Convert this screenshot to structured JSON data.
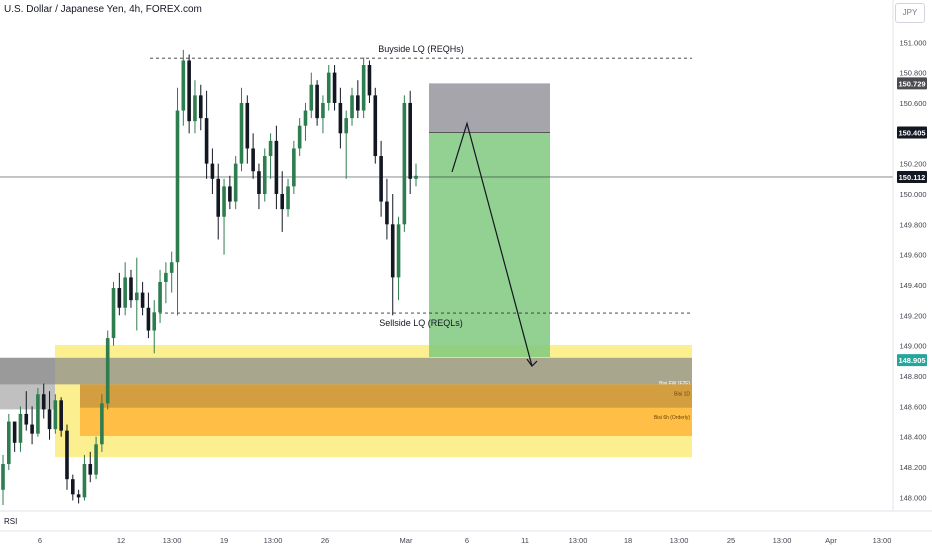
{
  "header": {
    "title": "U.S. Dollar / Japanese Yen, 4h, FOREX.com",
    "currency": "JPY"
  },
  "indicator": {
    "label": "RSI"
  },
  "colors": {
    "bull": "#26a69a",
    "bear": "#131722",
    "bull_fill": "#2e7d4f",
    "target_zone": "#7fc97f",
    "stop_zone": "#9b9ba2",
    "yellow_zone": "#fbe96a",
    "orange_zone": "#ffb53a",
    "gray_zone": "#8d8d8d",
    "last_price_bg": "#131722",
    "green_tag_bg": "#26a69a",
    "gray_tag_bg": "#4a4a4f"
  },
  "chart_data": {
    "type": "candlestick",
    "symbol": "USDJPY",
    "interval": "4h",
    "y_axis": {
      "ticks": [
        "151.000",
        "150.800",
        "150.600",
        "150.200",
        "150.000",
        "149.800",
        "149.600",
        "149.400",
        "149.200",
        "149.000",
        "148.800",
        "148.600",
        "148.400",
        "148.200",
        "148.000"
      ],
      "range": [
        147.93,
        151.16
      ]
    },
    "x_axis": {
      "ticks": [
        "6",
        "12",
        "13:00",
        "19",
        "13:00",
        "26",
        "Mar",
        "6",
        "11",
        "13:00",
        "18",
        "13:00",
        "25",
        "13:00",
        "Apr",
        "13:00"
      ]
    },
    "price_tags": [
      {
        "value": "150.729",
        "price": 150.729,
        "style": "gray"
      },
      {
        "value": "150.405",
        "price": 150.405,
        "style": "dark"
      },
      {
        "value": "150.112",
        "price": 150.112,
        "style": "dark"
      },
      {
        "value": "148.905",
        "price": 148.905,
        "style": "green"
      }
    ],
    "levels": [
      {
        "label": "Buyside LQ (REQHs)",
        "price": 150.895,
        "style": "dashed"
      },
      {
        "label": "Sellside LQ (REQLs)",
        "price": 149.215,
        "style": "dashed"
      },
      {
        "label": "",
        "price": 150.112,
        "style": "solid"
      }
    ],
    "zones": [
      {
        "label": "",
        "top": 149.005,
        "bottom": 148.265,
        "color": "yellow"
      },
      {
        "label": "Bisi FW (F2F)",
        "top": 148.92,
        "bottom": 148.745,
        "color": "gray"
      },
      {
        "label": "Bisi 1D",
        "top": 148.745,
        "bottom": 148.59,
        "color": "orange-dark"
      },
      {
        "label": "Bisi 6h (Orderly)",
        "top": 148.59,
        "bottom": 148.405,
        "color": "orange"
      }
    ],
    "position": {
      "type": "short",
      "stop": 150.729,
      "entry": 150.405,
      "target": 148.925
    },
    "projection": [
      150.145,
      150.465,
      148.905
    ],
    "candles": [
      [
        148.05,
        148.28,
        147.95,
        148.22
      ],
      [
        148.22,
        148.55,
        148.18,
        148.5
      ],
      [
        148.5,
        148.48,
        148.3,
        148.36
      ],
      [
        148.36,
        148.6,
        148.3,
        148.55
      ],
      [
        148.55,
        148.7,
        148.44,
        148.48
      ],
      [
        148.48,
        148.6,
        148.35,
        148.42
      ],
      [
        148.42,
        148.72,
        148.4,
        148.68
      ],
      [
        148.68,
        148.75,
        148.52,
        148.58
      ],
      [
        148.58,
        148.7,
        148.38,
        148.45
      ],
      [
        148.45,
        148.68,
        148.42,
        148.64
      ],
      [
        148.64,
        148.66,
        148.4,
        148.44
      ],
      [
        148.44,
        148.48,
        148.05,
        148.12
      ],
      [
        148.12,
        148.15,
        147.98,
        148.02
      ],
      [
        148.02,
        148.05,
        147.96,
        148.0
      ],
      [
        148.0,
        148.28,
        147.98,
        148.22
      ],
      [
        148.22,
        148.3,
        148.1,
        148.15
      ],
      [
        148.15,
        148.4,
        148.12,
        148.35
      ],
      [
        148.35,
        148.68,
        148.3,
        148.62
      ],
      [
        148.62,
        149.1,
        148.58,
        149.05
      ],
      [
        149.05,
        149.42,
        149.0,
        149.38
      ],
      [
        149.38,
        149.48,
        149.2,
        149.25
      ],
      [
        149.25,
        149.55,
        149.2,
        149.45
      ],
      [
        149.45,
        149.5,
        149.25,
        149.3
      ],
      [
        149.3,
        149.58,
        149.1,
        149.35
      ],
      [
        149.35,
        149.42,
        149.2,
        149.25
      ],
      [
        149.25,
        149.35,
        149.05,
        149.1
      ],
      [
        149.1,
        149.3,
        148.95,
        149.22
      ],
      [
        149.22,
        149.5,
        149.15,
        149.42
      ],
      [
        149.42,
        149.55,
        149.28,
        149.48
      ],
      [
        149.48,
        149.62,
        149.35,
        149.55
      ],
      [
        149.55,
        150.7,
        149.2,
        150.55
      ],
      [
        150.55,
        150.95,
        150.45,
        150.88
      ],
      [
        150.88,
        150.92,
        150.4,
        150.48
      ],
      [
        150.48,
        150.75,
        150.4,
        150.65
      ],
      [
        150.65,
        150.72,
        150.42,
        150.5
      ],
      [
        150.5,
        150.68,
        150.1,
        150.2
      ],
      [
        150.2,
        150.3,
        150.0,
        150.1
      ],
      [
        150.1,
        150.2,
        149.7,
        149.85
      ],
      [
        149.85,
        150.1,
        149.6,
        150.05
      ],
      [
        150.05,
        150.12,
        149.9,
        149.95
      ],
      [
        149.95,
        150.25,
        149.9,
        150.2
      ],
      [
        150.2,
        150.7,
        150.15,
        150.6
      ],
      [
        150.6,
        150.65,
        150.2,
        150.3
      ],
      [
        150.3,
        150.4,
        150.1,
        150.15
      ],
      [
        150.15,
        150.2,
        149.9,
        150.0
      ],
      [
        150.0,
        150.3,
        149.95,
        150.25
      ],
      [
        150.25,
        150.4,
        150.1,
        150.35
      ],
      [
        150.35,
        150.45,
        149.9,
        150.0
      ],
      [
        150.0,
        150.15,
        149.75,
        149.9
      ],
      [
        149.9,
        150.1,
        149.85,
        150.05
      ],
      [
        150.05,
        150.35,
        150.0,
        150.3
      ],
      [
        150.3,
        150.5,
        150.25,
        150.45
      ],
      [
        150.45,
        150.6,
        150.35,
        150.55
      ],
      [
        150.55,
        150.8,
        150.5,
        150.72
      ],
      [
        150.72,
        150.75,
        150.45,
        150.5
      ],
      [
        150.5,
        150.65,
        150.4,
        150.6
      ],
      [
        150.6,
        150.85,
        150.55,
        150.8
      ],
      [
        150.8,
        150.85,
        150.55,
        150.6
      ],
      [
        150.6,
        150.7,
        150.3,
        150.4
      ],
      [
        150.4,
        150.55,
        150.1,
        150.5
      ],
      [
        150.5,
        150.7,
        150.45,
        150.65
      ],
      [
        150.65,
        150.75,
        150.5,
        150.55
      ],
      [
        150.55,
        150.9,
        150.5,
        150.85
      ],
      [
        150.85,
        150.88,
        150.6,
        150.65
      ],
      [
        150.65,
        150.7,
        150.2,
        150.25
      ],
      [
        150.25,
        150.35,
        149.85,
        149.95
      ],
      [
        149.95,
        150.1,
        149.7,
        149.8
      ],
      [
        149.8,
        150.0,
        149.2,
        149.45
      ],
      [
        149.45,
        149.85,
        149.3,
        149.8
      ],
      [
        149.8,
        150.65,
        149.75,
        150.6
      ],
      [
        150.6,
        150.68,
        150.0,
        150.1
      ],
      [
        150.1,
        150.2,
        150.05,
        150.12
      ]
    ]
  }
}
